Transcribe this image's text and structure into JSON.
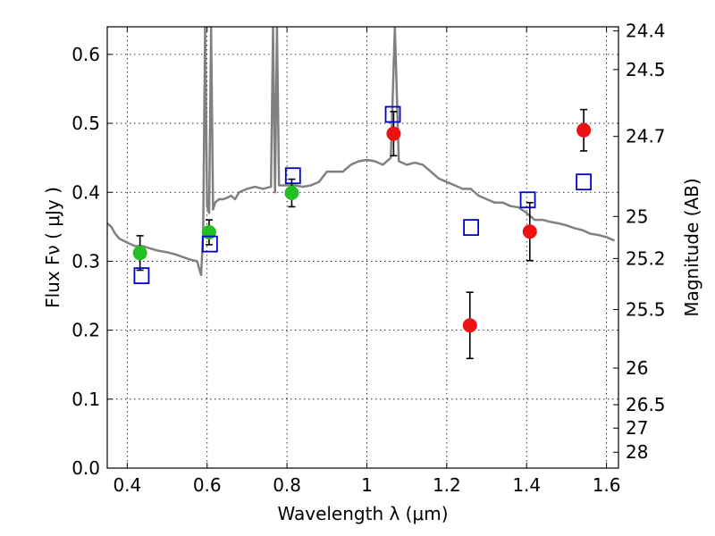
{
  "chart_data": {
    "type": "scatter",
    "title": "",
    "xlabel": "Wavelength  λ (μm)",
    "ylabel": "Flux  Fν  ( μJy )",
    "y2label": "Magnitude (AB)",
    "xlim": [
      0.35,
      1.63
    ],
    "ylim": [
      0.0,
      0.64
    ],
    "grid": true,
    "xticks": [
      0.4,
      0.6,
      0.8,
      1.0,
      1.2,
      1.4,
      1.6
    ],
    "xtick_labels": [
      "0.4",
      "0.6",
      "0.8",
      "1",
      "1.2",
      "1.4",
      "1.6"
    ],
    "yticks": [
      0.0,
      0.1,
      0.2,
      0.3,
      0.4,
      0.5,
      0.6
    ],
    "ytick_labels": [
      "0.0",
      "0.1",
      "0.2",
      "0.3",
      "0.4",
      "0.5",
      "0.6"
    ],
    "y2ticks": [
      {
        "label": "24.4",
        "flux": 0.634
      },
      {
        "label": "24.5",
        "flux": 0.578
      },
      {
        "label": "24.7",
        "flux": 0.481
      },
      {
        "label": "25",
        "flux": 0.365
      },
      {
        "label": "25.2",
        "flux": 0.304
      },
      {
        "label": "25.5",
        "flux": 0.23
      },
      {
        "label": "26",
        "flux": 0.145
      },
      {
        "label": "26.5",
        "flux": 0.092
      },
      {
        "label": "27",
        "flux": 0.058
      },
      {
        "label": "28",
        "flux": 0.023
      }
    ],
    "colors": {
      "model": "#808080",
      "green": "#22c022",
      "red": "#ee1111",
      "box": "#0000cc",
      "errorbar": "#000000"
    },
    "series": [
      {
        "kind": "model-spectrum",
        "x": [
          0.35,
          0.36,
          0.37,
          0.38,
          0.39,
          0.4,
          0.42,
          0.44,
          0.46,
          0.48,
          0.5,
          0.52,
          0.54,
          0.56,
          0.575,
          0.585,
          0.59,
          0.595,
          0.6,
          0.605,
          0.61,
          0.615,
          0.62,
          0.63,
          0.64,
          0.65,
          0.66,
          0.67,
          0.68,
          0.7,
          0.72,
          0.74,
          0.76,
          0.765,
          0.77,
          0.775,
          0.78,
          0.79,
          0.8,
          0.82,
          0.84,
          0.86,
          0.88,
          0.9,
          0.92,
          0.94,
          0.96,
          0.98,
          1.0,
          1.02,
          1.04,
          1.06,
          1.07,
          1.08,
          1.1,
          1.12,
          1.14,
          1.16,
          1.18,
          1.2,
          1.22,
          1.24,
          1.26,
          1.28,
          1.3,
          1.32,
          1.34,
          1.36,
          1.38,
          1.4,
          1.42,
          1.44,
          1.46,
          1.48,
          1.5,
          1.52,
          1.54,
          1.56,
          1.58,
          1.6,
          1.62
        ],
        "y": [
          0.355,
          0.35,
          0.34,
          0.333,
          0.33,
          0.327,
          0.322,
          0.322,
          0.318,
          0.315,
          0.313,
          0.31,
          0.306,
          0.302,
          0.3,
          0.28,
          0.34,
          0.64,
          0.38,
          0.37,
          0.64,
          0.375,
          0.385,
          0.39,
          0.39,
          0.392,
          0.395,
          0.39,
          0.4,
          0.405,
          0.408,
          0.405,
          0.408,
          0.64,
          0.4,
          0.64,
          0.41,
          0.41,
          0.41,
          0.41,
          0.408,
          0.41,
          0.415,
          0.43,
          0.43,
          0.43,
          0.44,
          0.445,
          0.447,
          0.445,
          0.44,
          0.45,
          0.64,
          0.445,
          0.44,
          0.443,
          0.44,
          0.43,
          0.42,
          0.415,
          0.41,
          0.405,
          0.405,
          0.395,
          0.39,
          0.385,
          0.385,
          0.38,
          0.378,
          0.37,
          0.36,
          0.36,
          0.357,
          0.355,
          0.352,
          0.348,
          0.345,
          0.34,
          0.338,
          0.335,
          0.33
        ]
      },
      {
        "kind": "observed-green",
        "x": [
          0.432,
          0.605,
          0.812
        ],
        "y": [
          0.312,
          0.342,
          0.399
        ],
        "err": [
          0.025,
          0.018,
          0.02
        ]
      },
      {
        "kind": "observed-red",
        "x": [
          1.067,
          1.258,
          1.408,
          1.543
        ],
        "y": [
          0.485,
          0.207,
          0.343,
          0.49
        ],
        "err": [
          0.032,
          0.048,
          0.042,
          0.03
        ]
      },
      {
        "kind": "model-photometry",
        "x": [
          0.436,
          0.607,
          0.815,
          1.065,
          1.261,
          1.403,
          1.543
        ],
        "y": [
          0.279,
          0.325,
          0.424,
          0.513,
          0.349,
          0.389,
          0.415
        ]
      }
    ]
  }
}
